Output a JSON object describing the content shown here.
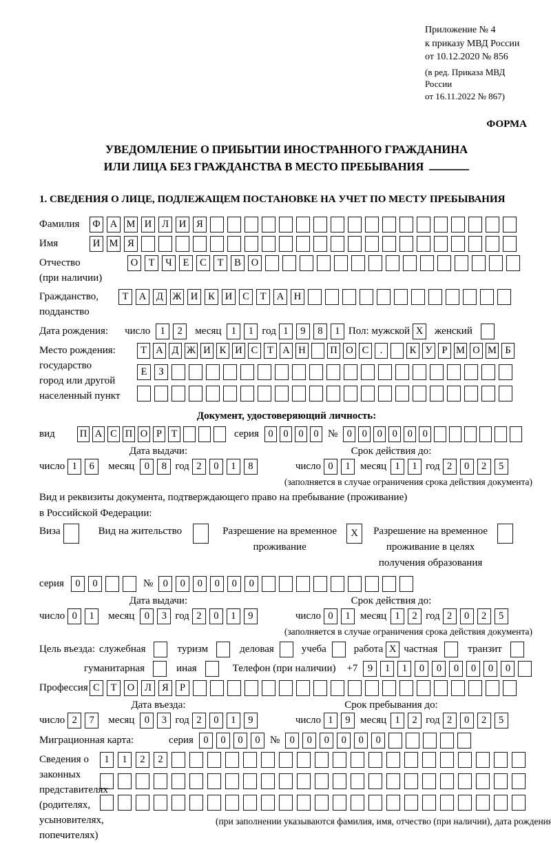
{
  "annex": {
    "line1": "Приложение № 4",
    "line2": "к приказу МВД России",
    "line3": "от 10.12.2020 № 856",
    "line4": "(в ред. Приказа МВД России",
    "line5": "от 16.11.2022 № 867)"
  },
  "form_label": "ФОРМА",
  "title": {
    "line1": "УВЕДОМЛЕНИЕ О ПРИБЫТИИ ИНОСТРАННОГО ГРАЖДАНИНА",
    "line2": "ИЛИ ЛИЦА БЕЗ ГРАЖДАНСТВА В МЕСТО ПРЕБЫВАНИЯ"
  },
  "section1_heading": "1. СВЕДЕНИЯ О ЛИЦЕ, ПОДЛЕЖАЩЕМ ПОСТАНОВКЕ НА УЧЕТ ПО МЕСТУ ПРЕБЫВАНИЯ",
  "surname": {
    "label": "Фамилия",
    "grid": {
      "count": 25,
      "value": "ФАМИЛИЯ"
    }
  },
  "firstname": {
    "label": "Имя",
    "grid": {
      "count": 25,
      "value": "ИМЯ"
    }
  },
  "patronymic": {
    "label": "Отчество",
    "label2": "(при наличии)",
    "grid": {
      "count": 23,
      "value": "ОТЧЕСТВО"
    }
  },
  "citizenship": {
    "label": "Гражданство,",
    "label2": "подданство",
    "grid": {
      "count": 23,
      "value": "ТАДЖИКИСТАН"
    }
  },
  "birth": {
    "label": "Дата рождения:",
    "day_label": "число",
    "day": {
      "count": 2,
      "value": "12"
    },
    "month_label": "месяц",
    "month": {
      "count": 2,
      "value": "11"
    },
    "year_label": "год",
    "year": {
      "count": 4,
      "value": "1981"
    },
    "sex_label": "Пол: мужской",
    "male_mark": "X",
    "female_label": "женский",
    "female_mark": ""
  },
  "birthplace": {
    "label1": "Место рождения:",
    "label2": "государство",
    "label3": "город или другой",
    "label4": "населенный пункт",
    "row1": {
      "count": 24,
      "value": "ТАДЖИКИСТАН ПОС. КУРМОМБ"
    },
    "row2": {
      "count": 22,
      "value": "ЕЗ"
    },
    "row3": {
      "count": 22,
      "value": ""
    }
  },
  "iddoc": {
    "heading": "Документ, удостоверяющий личность:",
    "type_label": "вид",
    "type": {
      "count": 10,
      "value": "ПАСПОРТ"
    },
    "series_label": "серия",
    "series": {
      "count": 4,
      "value": "0000"
    },
    "number_label": "№",
    "number": {
      "count": 12,
      "value": "000000"
    }
  },
  "iddoc_dates": {
    "issue_title": "Дата выдачи:",
    "valid_title": "Срок действия до:",
    "day_label": "число",
    "month_label": "месяц",
    "year_label": "год",
    "issue_day": {
      "count": 2,
      "value": "16"
    },
    "issue_month": {
      "count": 2,
      "value": "08"
    },
    "issue_year": {
      "count": 4,
      "value": "2018"
    },
    "valid_day": {
      "count": 2,
      "value": "01"
    },
    "valid_month": {
      "count": 2,
      "value": "11"
    },
    "valid_year": {
      "count": 4,
      "value": "2025"
    },
    "note": "(заполняется в случае ограничения срока действия документа)"
  },
  "residence": {
    "intro1": "Вид и реквизиты документа, подтверждающего право на пребывание (проживание)",
    "intro2": "в Российской Федерации:",
    "visa_label": "Виза",
    "visa_mark": "",
    "vnj_label": "Вид на жительство",
    "vnj_mark": "",
    "rvp_line1": "Разрешение на временное",
    "rvp_line2": "проживание",
    "rvp_mark": "X",
    "rvpo_line1": "Разрешение на временное",
    "rvpo_line2": "проживание в целях",
    "rvpo_line3": "получения образования",
    "rvpo_mark": "",
    "series_label": "серия",
    "series": {
      "count": 4,
      "value": "00"
    },
    "number_label": "№",
    "number": {
      "count": 15,
      "value": "000000"
    }
  },
  "residence_dates": {
    "issue_title": "Дата выдачи:",
    "valid_title": "Срок действия до:",
    "day_label": "число",
    "month_label": "месяц",
    "year_label": "год",
    "issue_day": {
      "count": 2,
      "value": "01"
    },
    "issue_month": {
      "count": 2,
      "value": "03"
    },
    "issue_year": {
      "count": 4,
      "value": "2019"
    },
    "valid_day": {
      "count": 2,
      "value": "01"
    },
    "valid_month": {
      "count": 2,
      "value": "12"
    },
    "valid_year": {
      "count": 4,
      "value": "2025"
    },
    "note": "(заполняется в случае ограничения срока действия документа)"
  },
  "purpose": {
    "label": "Цель въезда:",
    "opt1": "служебная",
    "opt1_mark": "",
    "opt2": "туризм",
    "opt2_mark": "",
    "opt3": "деловая",
    "opt3_mark": "",
    "opt4": "учеба",
    "opt4_mark": "",
    "opt5": "работа",
    "opt5_mark": "X",
    "opt6": "частная",
    "opt6_mark": "",
    "opt7": "транзит",
    "opt7_mark": "",
    "opt8": "гуманитарная",
    "opt8_mark": "",
    "opt9": "иная",
    "opt9_mark": ""
  },
  "phone": {
    "label": "Телефон (при наличии)",
    "prefix": "+7",
    "grid": {
      "count": 10,
      "value": "911000000"
    }
  },
  "profession": {
    "label": "Профессия",
    "grid": {
      "count": 25,
      "value": "СТОЛЯР"
    }
  },
  "entry": {
    "entry_title": "Дата въезда:",
    "stay_title": "Срок пребывания до:",
    "day_label": "число",
    "month_label": "месяц",
    "year_label": "год",
    "entry_day": {
      "count": 2,
      "value": "27"
    },
    "entry_month": {
      "count": 2,
      "value": "03"
    },
    "entry_year": {
      "count": 4,
      "value": "2019"
    },
    "stay_day": {
      "count": 2,
      "value": "19"
    },
    "stay_month": {
      "count": 2,
      "value": "12"
    },
    "stay_year": {
      "count": 4,
      "value": "2025"
    }
  },
  "migration": {
    "label": "Миграционная карта:",
    "series_label": "серия",
    "series": {
      "count": 4,
      "value": "0000"
    },
    "number_label": "№",
    "number": {
      "count": 11,
      "value": "000000"
    }
  },
  "representatives": {
    "label1": "Сведения о",
    "label2": "законных",
    "label3": "представителях",
    "label4": "(родителях,",
    "label5": "усыновителях,",
    "label6": "попечителях)",
    "row1": {
      "count": 24,
      "value": "1122"
    },
    "row2": {
      "count": 24,
      "value": ""
    },
    "row3": {
      "count": 24,
      "value": ""
    },
    "note": "(при заполнении указываются фамилия, имя, отчество (при наличии), дата рождения)"
  }
}
